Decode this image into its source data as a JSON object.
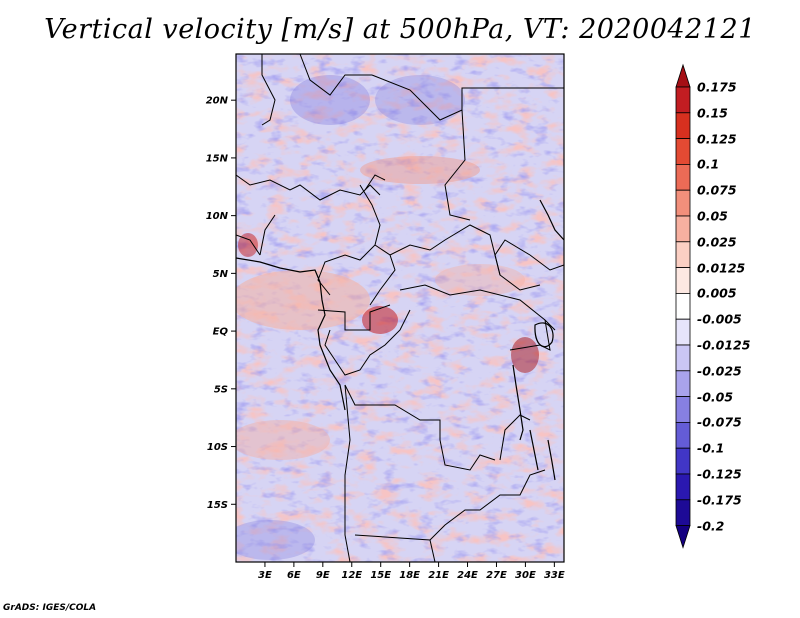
{
  "title": "Vertical velocity [m/s] at 500hPa, VT: 2020042121",
  "footer": "GrADS: IGES/COLA",
  "chart_data": {
    "type": "heatmap",
    "variable": "Vertical velocity",
    "units": "m/s",
    "level": "500hPa",
    "valid_time": "2020042121",
    "lon_range": [
      0,
      34
    ],
    "lat_range": [
      -20,
      24
    ],
    "x_ticks": [
      {
        "value": 3,
        "label": "3E"
      },
      {
        "value": 6,
        "label": "6E"
      },
      {
        "value": 9,
        "label": "9E"
      },
      {
        "value": 12,
        "label": "12E"
      },
      {
        "value": 15,
        "label": "15E"
      },
      {
        "value": 18,
        "label": "18E"
      },
      {
        "value": 21,
        "label": "21E"
      },
      {
        "value": 24,
        "label": "24E"
      },
      {
        "value": 27,
        "label": "27E"
      },
      {
        "value": 30,
        "label": "30E"
      },
      {
        "value": 33,
        "label": "33E"
      }
    ],
    "y_ticks": [
      {
        "value": 20,
        "label": "20N"
      },
      {
        "value": 15,
        "label": "15N"
      },
      {
        "value": 10,
        "label": "10N"
      },
      {
        "value": 5,
        "label": "5N"
      },
      {
        "value": 0,
        "label": "EQ"
      },
      {
        "value": -5,
        "label": "5S"
      },
      {
        "value": -10,
        "label": "10S"
      },
      {
        "value": -15,
        "label": "15S"
      }
    ],
    "colorbar": {
      "labels": [
        "0.175",
        "0.15",
        "0.125",
        "0.1",
        "0.075",
        "0.05",
        "0.025",
        "0.0125",
        "0.005",
        "-0.005",
        "-0.0125",
        "-0.025",
        "-0.05",
        "-0.075",
        "-0.1",
        "-0.125",
        "-0.175",
        "-0.2"
      ],
      "colors": [
        "#a50f15",
        "#c21d22",
        "#d7301f",
        "#e34a33",
        "#ec6b56",
        "#f28f7b",
        "#f7b0a0",
        "#fbcfc3",
        "#fde8e2",
        "#ffffff",
        "#e6e4fb",
        "#cac6f5",
        "#a9a3ec",
        "#8780e2",
        "#645cd6",
        "#4136c6",
        "#2a18b0",
        "#1d0a96",
        "#140080"
      ]
    }
  }
}
